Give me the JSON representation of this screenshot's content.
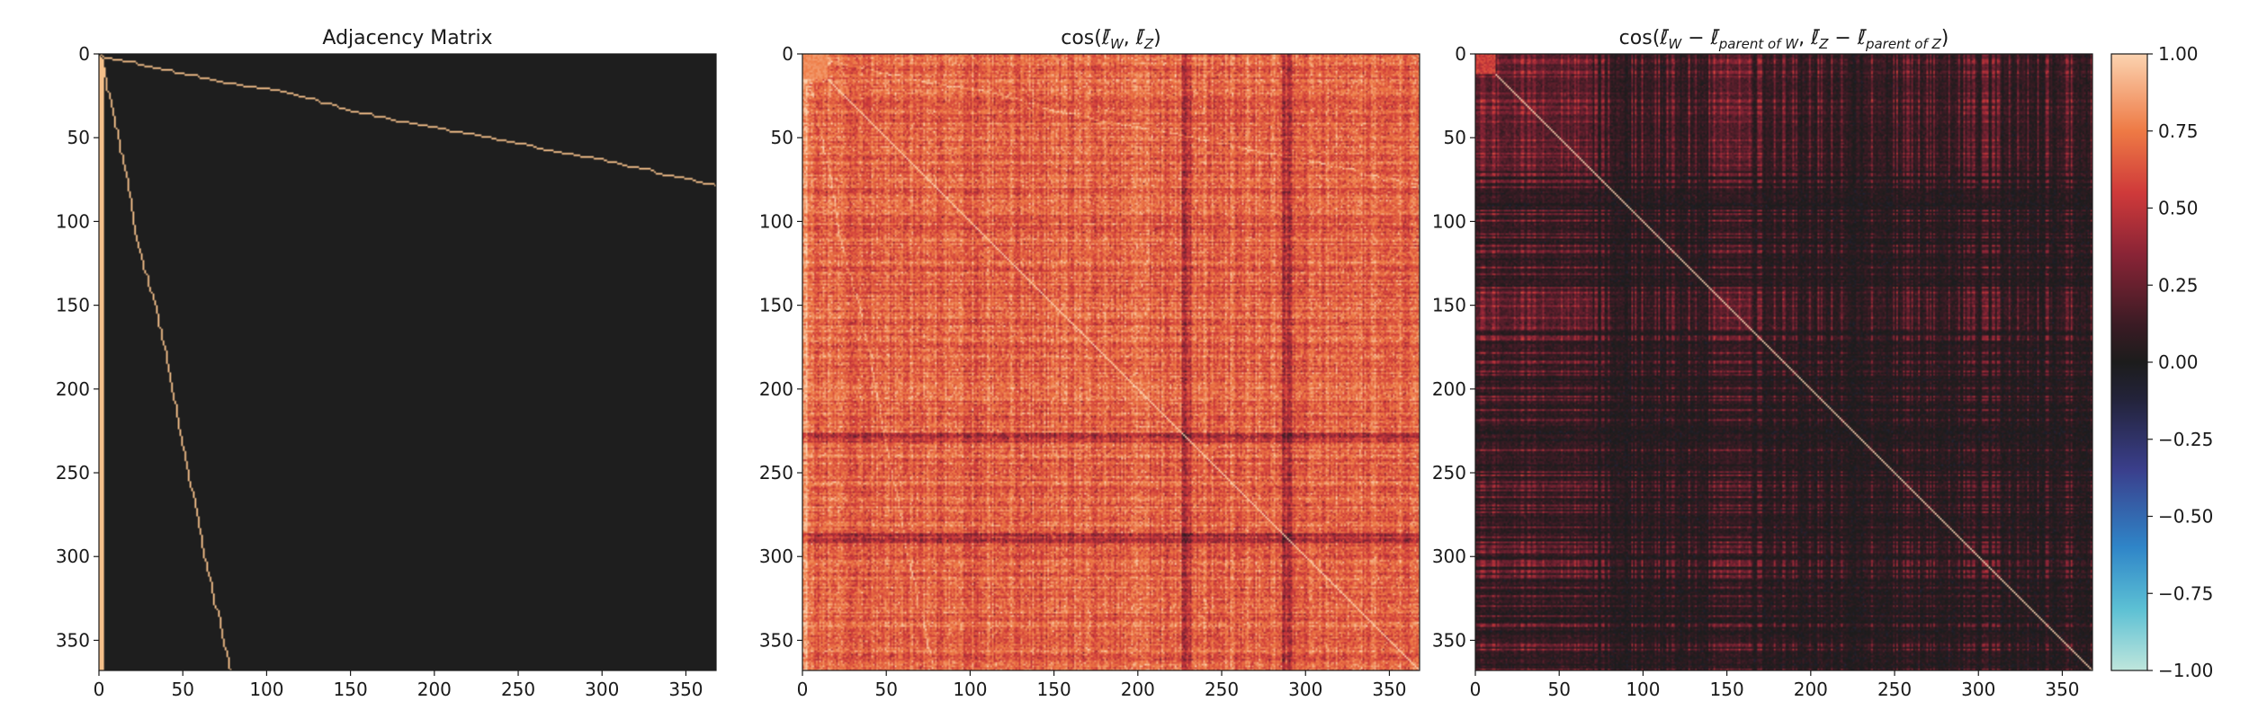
{
  "chart_data": [
    {
      "type": "heatmap",
      "title": "Adjacency Matrix",
      "size": 368,
      "xlim": [
        0,
        368
      ],
      "ylim": [
        368,
        0
      ],
      "xticks": [
        0,
        50,
        100,
        150,
        200,
        250,
        300,
        350
      ],
      "yticks": [
        0,
        50,
        100,
        150,
        200,
        250,
        300,
        350
      ],
      "value_range": [
        0,
        1
      ],
      "description_values": "binary parent-child adjacency (0 or 1)",
      "colors": {
        "zero": "#1e1e1e",
        "one": "#f5c08a"
      }
    },
    {
      "type": "heatmap",
      "title_parts": {
        "pre": "cos(",
        "a": "ℓ̄",
        "a_sub": "W",
        "mid": ", ",
        "b": "ℓ̄",
        "b_sub": "Z",
        "post": ")"
      },
      "size": 368,
      "xlim": [
        0,
        368
      ],
      "ylim": [
        368,
        0
      ],
      "xticks": [
        0,
        50,
        100,
        150,
        200,
        250,
        300,
        350
      ],
      "yticks": [
        0,
        50,
        100,
        150,
        200,
        250,
        300,
        350
      ],
      "value_range": [
        -1,
        1
      ],
      "diagonal": 1.0
    },
    {
      "type": "heatmap",
      "title_parts": {
        "pre": "cos(",
        "a": "ℓ̄",
        "a_sub": "W",
        "minus1": " − ",
        "c": "ℓ̄",
        "c_sub": "parent of W",
        "mid": ", ",
        "b": "ℓ̄",
        "b_sub": "Z",
        "minus2": " − ",
        "d": "ℓ̄",
        "d_sub": "parent of Z",
        "post": ")"
      },
      "size": 368,
      "xlim": [
        0,
        368
      ],
      "ylim": [
        368,
        0
      ],
      "xticks": [
        0,
        50,
        100,
        150,
        200,
        250,
        300,
        350
      ],
      "yticks": [
        0,
        50,
        100,
        150,
        200,
        250,
        300,
        350
      ],
      "value_range": [
        -1,
        1
      ],
      "diagonal": 1.0
    }
  ],
  "colorbar": {
    "ticks": [
      1.0,
      0.75,
      0.5,
      0.25,
      0.0,
      -0.25,
      -0.5,
      -0.75,
      -1.0
    ],
    "tick_labels": [
      "1.00",
      "0.75",
      "0.50",
      "0.25",
      "0.00",
      "−0.25",
      "−0.50",
      "−0.75",
      "−1.00"
    ],
    "range": [
      -1,
      1
    ],
    "colormap": "icefire",
    "stops": [
      {
        "v": -1.0,
        "color": "#bfe6dc"
      },
      {
        "v": -0.8,
        "color": "#5cc0d4"
      },
      {
        "v": -0.6,
        "color": "#2f85c8"
      },
      {
        "v": -0.35,
        "color": "#3a3f8c"
      },
      {
        "v": -0.12,
        "color": "#23233a"
      },
      {
        "v": 0.0,
        "color": "#1c1c1c"
      },
      {
        "v": 0.12,
        "color": "#3a1b24"
      },
      {
        "v": 0.35,
        "color": "#8a2436"
      },
      {
        "v": 0.55,
        "color": "#cf3a3a"
      },
      {
        "v": 0.75,
        "color": "#ee7a45"
      },
      {
        "v": 1.0,
        "color": "#fbd3b0"
      }
    ]
  }
}
